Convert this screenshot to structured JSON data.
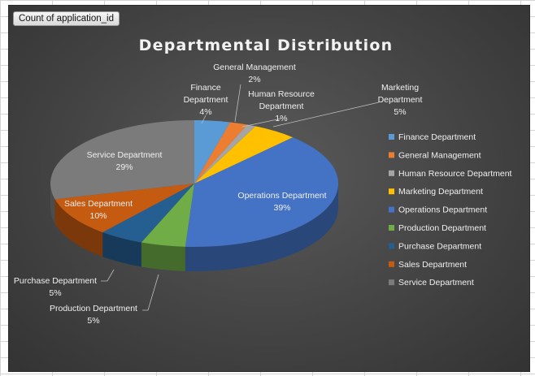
{
  "pivot_field_button": "Count of application_id",
  "chart_data": {
    "type": "pie",
    "title": "Departmental Distribution",
    "legend_position": "right",
    "slices": [
      {
        "name": "Finance Department",
        "value": 4,
        "label_lines": [
          "Finance",
          "Department",
          "4%"
        ],
        "color": "#5b9bd5"
      },
      {
        "name": "General Management",
        "value": 2,
        "label_lines": [
          "General Management",
          "2%"
        ],
        "color": "#ed7d31"
      },
      {
        "name": "Human Resource Department",
        "value": 1,
        "label_lines": [
          "Human Resource",
          "Department",
          "1%"
        ],
        "color": "#a5a5a5"
      },
      {
        "name": "Marketing Department",
        "value": 5,
        "label_lines": [
          "Marketing",
          "Department",
          "5%"
        ],
        "color": "#ffc000"
      },
      {
        "name": "Operations Department",
        "value": 39,
        "label_lines": [
          "Operations Department",
          "39%"
        ],
        "color": "#4472c4"
      },
      {
        "name": "Production Department",
        "value": 5,
        "label_lines": [
          "Production Department",
          "5%"
        ],
        "color": "#70ad47"
      },
      {
        "name": "Purchase Department",
        "value": 5,
        "label_lines": [
          "Purchase Department",
          "5%"
        ],
        "color": "#255e91"
      },
      {
        "name": "Sales Department",
        "value": 10,
        "label_lines": [
          "Sales Department",
          "10%"
        ],
        "color": "#c55a11"
      },
      {
        "name": "Service Department",
        "value": 29,
        "label_lines": [
          "Service Department",
          "29%"
        ],
        "color": "#7b7b7b"
      }
    ]
  }
}
